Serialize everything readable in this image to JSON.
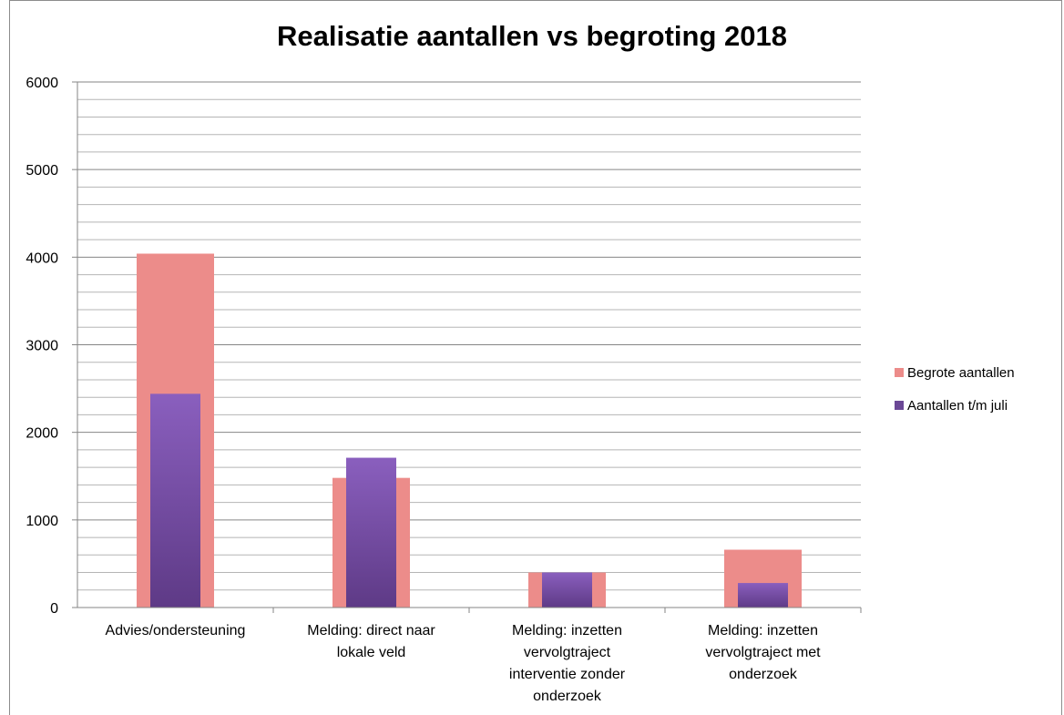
{
  "chart_data": {
    "type": "bar",
    "title": "Realisatie aantallen vs begroting 2018",
    "categories": [
      [
        "Advies/ondersteuning"
      ],
      [
        "Melding: direct naar",
        "lokale veld"
      ],
      [
        "Melding: inzetten",
        "vervolgtraject",
        "interventie zonder",
        "onderzoek"
      ],
      [
        "Melding: inzetten",
        "vervolgtraject met",
        "onderzoek"
      ]
    ],
    "series": [
      {
        "name": "Begrote aantallen",
        "values": [
          4040,
          1480,
          400,
          660
        ],
        "color": "#ec8c8a"
      },
      {
        "name": "Aantallen t/m juli",
        "values": [
          2440,
          1710,
          400,
          280
        ],
        "color": "#7b52a8"
      }
    ],
    "ylim": [
      0,
      6000
    ],
    "yticks": [
      0,
      1000,
      2000,
      3000,
      4000,
      5000,
      6000
    ],
    "minor_step": 200,
    "grid": true,
    "legend_position": "right",
    "xlabel": "",
    "ylabel": ""
  }
}
